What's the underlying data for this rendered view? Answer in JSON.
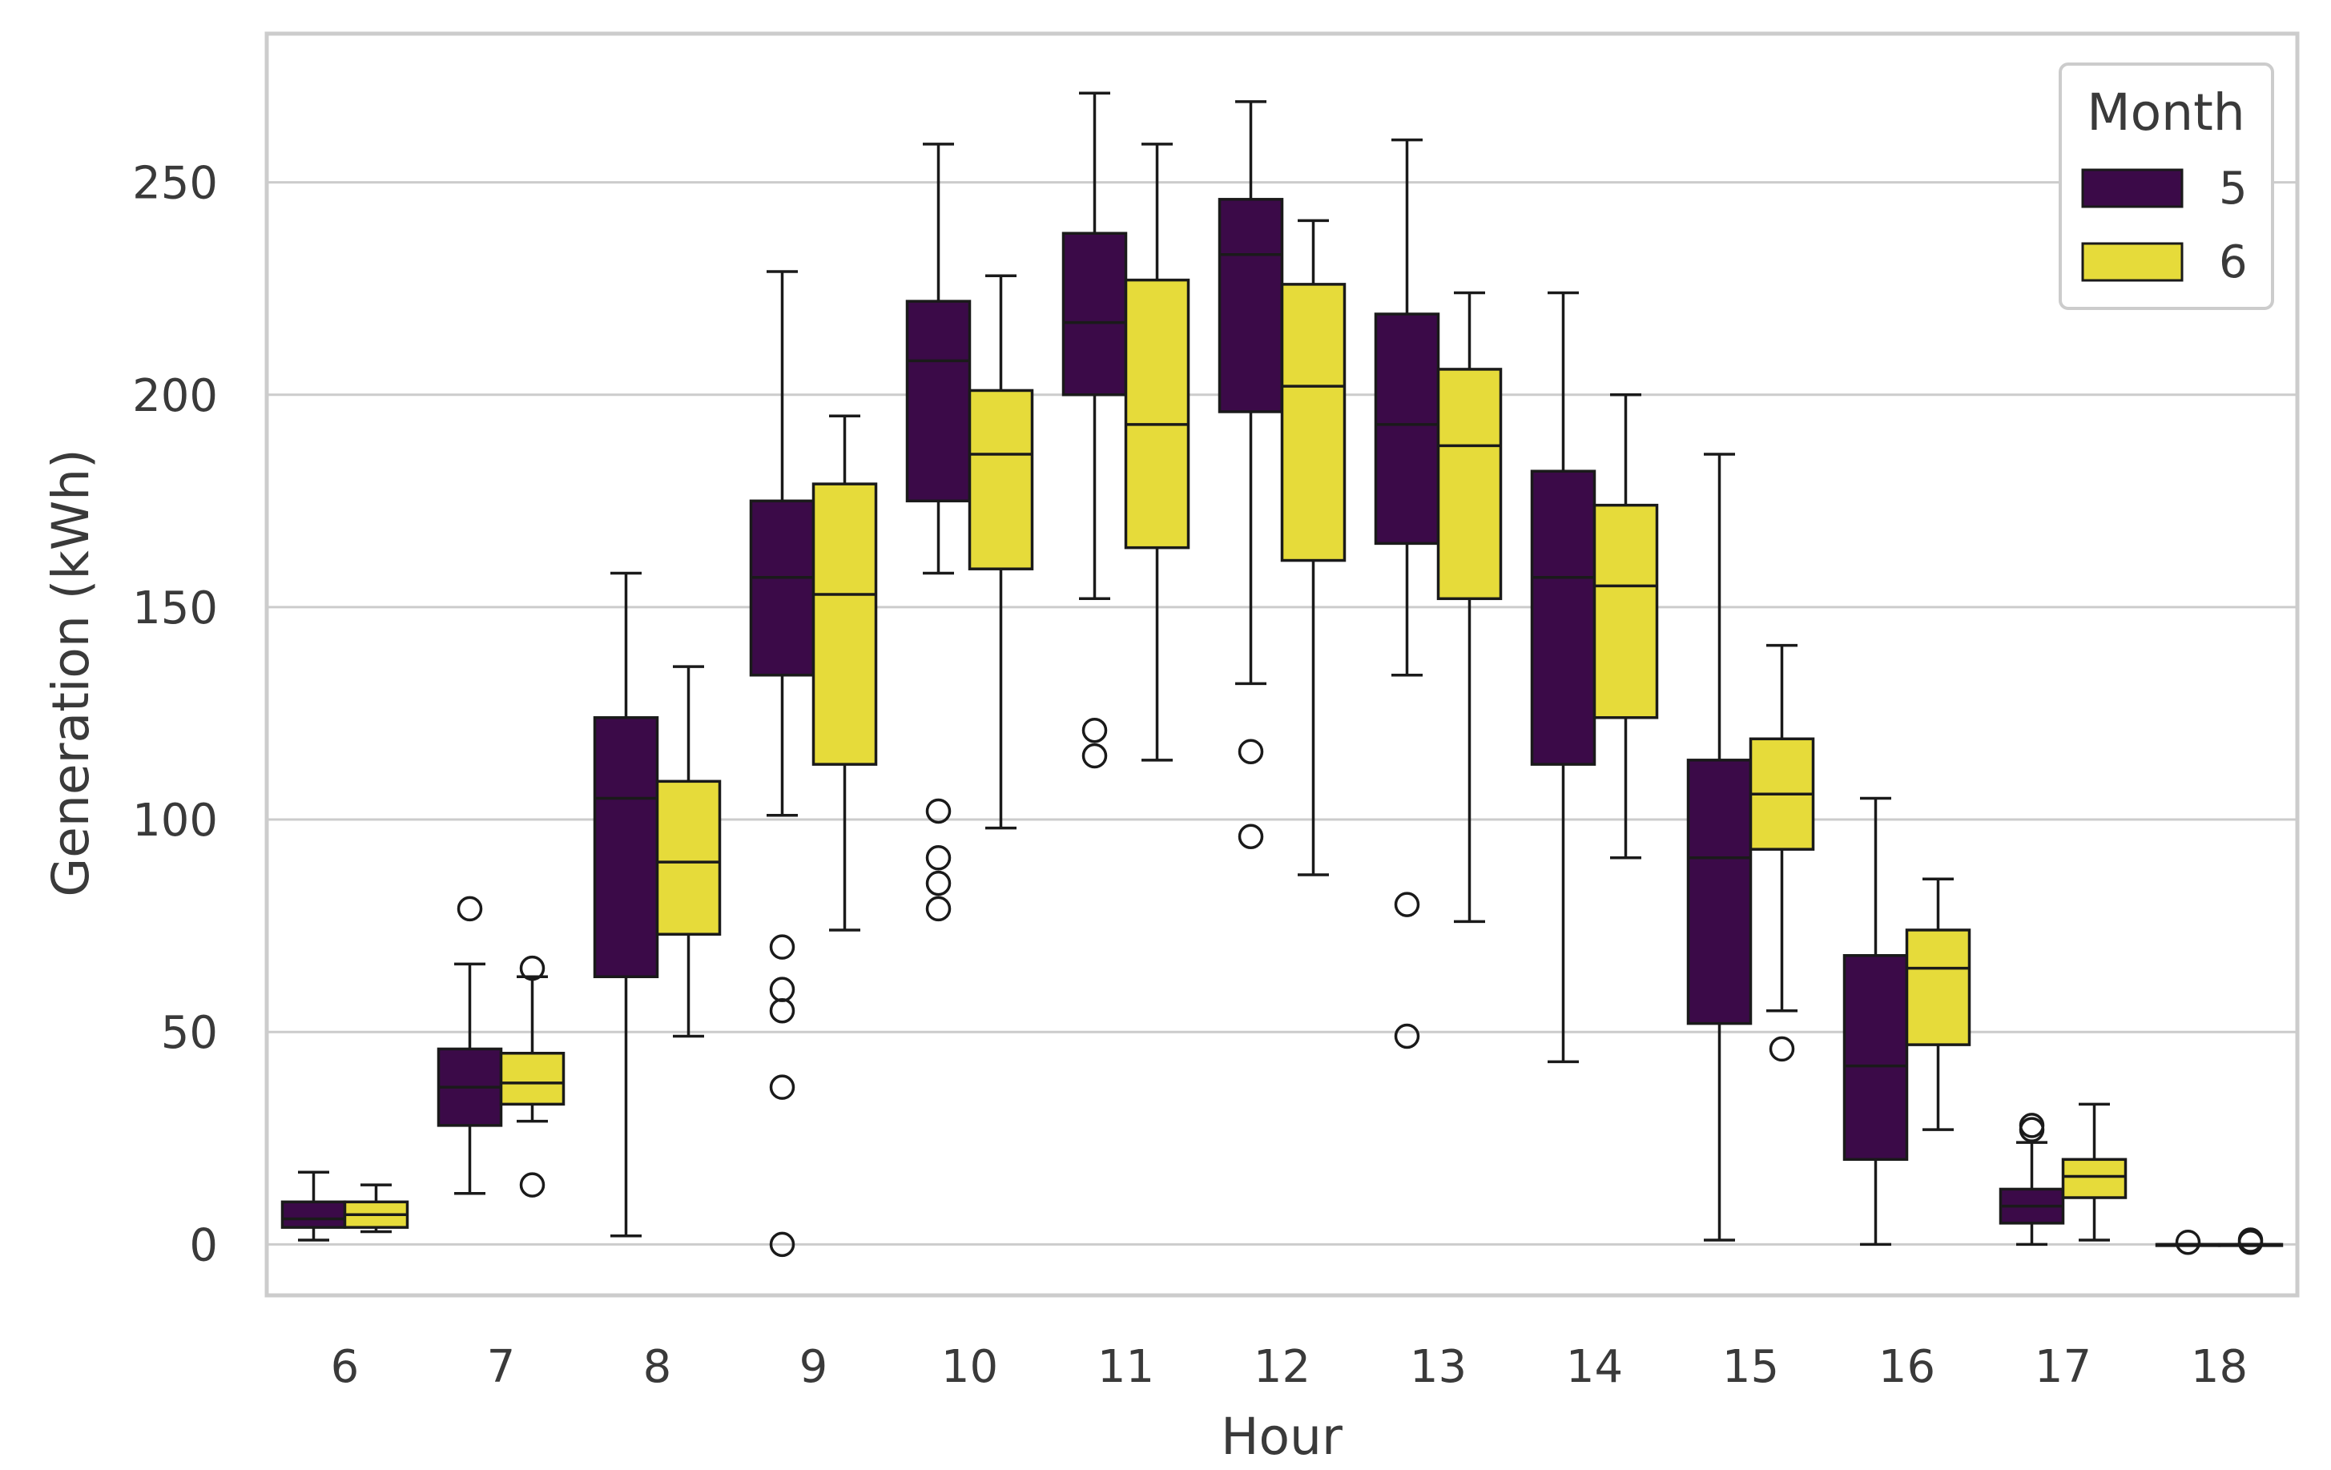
{
  "chart_data": {
    "type": "boxplot",
    "title": "",
    "xlabel": "Hour",
    "ylabel": "Generation (kWh)",
    "categories": [
      "6",
      "7",
      "8",
      "9",
      "10",
      "11",
      "12",
      "13",
      "14",
      "15",
      "16",
      "17",
      "18"
    ],
    "ylim": [
      -12,
      285
    ],
    "yticks": [
      0,
      50,
      100,
      150,
      200,
      250
    ],
    "grid": true,
    "legend": {
      "title": "Month",
      "position": "top-right"
    },
    "series": [
      {
        "name": "5",
        "color": "#3b0a48",
        "boxes": [
          {
            "whislo": 1,
            "q1": 4,
            "med": 6,
            "q3": 10,
            "whishi": 17,
            "fliers": []
          },
          {
            "whislo": 12,
            "q1": 28,
            "med": 37,
            "q3": 46,
            "whishi": 66,
            "fliers": [
              79
            ]
          },
          {
            "whislo": 2,
            "q1": 63,
            "med": 105,
            "q3": 124,
            "whishi": 158,
            "fliers": []
          },
          {
            "whislo": 101,
            "q1": 134,
            "med": 157,
            "q3": 175,
            "whishi": 229,
            "fliers": [
              70,
              60,
              55,
              37,
              0
            ]
          },
          {
            "whislo": 158,
            "q1": 175,
            "med": 208,
            "q3": 222,
            "whishi": 259,
            "fliers": [
              102,
              91,
              85,
              79
            ]
          },
          {
            "whislo": 152,
            "q1": 200,
            "med": 217,
            "q3": 238,
            "whishi": 271,
            "fliers": [
              121,
              115
            ]
          },
          {
            "whislo": 132,
            "q1": 196,
            "med": 233,
            "q3": 246,
            "whishi": 269,
            "fliers": [
              116,
              96
            ]
          },
          {
            "whislo": 134,
            "q1": 165,
            "med": 193,
            "q3": 219,
            "whishi": 260,
            "fliers": [
              80,
              49
            ]
          },
          {
            "whislo": 43,
            "q1": 113,
            "med": 157,
            "q3": 182,
            "whishi": 224,
            "fliers": []
          },
          {
            "whislo": 1,
            "q1": 52,
            "med": 91,
            "q3": 114,
            "whishi": 186,
            "fliers": []
          },
          {
            "whislo": 0,
            "q1": 20,
            "med": 42,
            "q3": 68,
            "whishi": 105,
            "fliers": []
          },
          {
            "whislo": 0,
            "q1": 5,
            "med": 9,
            "q3": 13,
            "whishi": 24,
            "fliers": [
              28,
              27
            ]
          },
          {
            "whislo": 0,
            "q1": 0,
            "med": 0,
            "q3": 0,
            "whishi": 0,
            "fliers": [
              0.5
            ]
          }
        ]
      },
      {
        "name": "6",
        "color": "#e6db3a",
        "boxes": [
          {
            "whislo": 3,
            "q1": 4,
            "med": 7,
            "q3": 10,
            "whishi": 14,
            "fliers": []
          },
          {
            "whislo": 29,
            "q1": 33,
            "med": 38,
            "q3": 45,
            "whishi": 63,
            "fliers": [
              65,
              14
            ]
          },
          {
            "whislo": 49,
            "q1": 73,
            "med": 90,
            "q3": 109,
            "whishi": 136,
            "fliers": []
          },
          {
            "whislo": 74,
            "q1": 113,
            "med": 153,
            "q3": 179,
            "whishi": 195,
            "fliers": []
          },
          {
            "whislo": 98,
            "q1": 159,
            "med": 186,
            "q3": 201,
            "whishi": 228,
            "fliers": []
          },
          {
            "whislo": 114,
            "q1": 164,
            "med": 193,
            "q3": 227,
            "whishi": 259,
            "fliers": []
          },
          {
            "whislo": 87,
            "q1": 161,
            "med": 202,
            "q3": 226,
            "whishi": 241,
            "fliers": []
          },
          {
            "whislo": 76,
            "q1": 152,
            "med": 188,
            "q3": 206,
            "whishi": 224,
            "fliers": []
          },
          {
            "whislo": 91,
            "q1": 124,
            "med": 155,
            "q3": 174,
            "whishi": 200,
            "fliers": []
          },
          {
            "whislo": 55,
            "q1": 93,
            "med": 106,
            "q3": 119,
            "whishi": 141,
            "fliers": [
              46
            ]
          },
          {
            "whislo": 27,
            "q1": 47,
            "med": 65,
            "q3": 74,
            "whishi": 86,
            "fliers": []
          },
          {
            "whislo": 1,
            "q1": 11,
            "med": 16,
            "q3": 20,
            "whishi": 33,
            "fliers": []
          },
          {
            "whislo": 0,
            "q1": 0,
            "med": 0,
            "q3": 0,
            "whishi": 0,
            "fliers": [
              1,
              0.5
            ]
          }
        ]
      }
    ]
  }
}
